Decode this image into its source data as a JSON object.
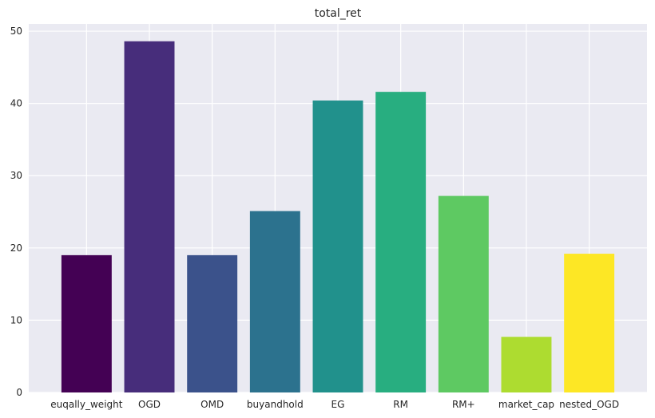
{
  "chart_data": {
    "type": "bar",
    "title": "total_ret",
    "xlabel": "",
    "ylabel": "",
    "categories": [
      "euqally_weight",
      "OGD",
      "OMD",
      "buyandhold",
      "EG",
      "RM",
      "RM+",
      "market_cap",
      "nested_OGD"
    ],
    "values": [
      19.0,
      48.6,
      19.0,
      25.1,
      40.4,
      41.6,
      27.2,
      7.7,
      19.2
    ],
    "colors": [
      "#440154",
      "#472d7b",
      "#3b528b",
      "#2c728e",
      "#21918c",
      "#28ae80",
      "#5ec962",
      "#addc30",
      "#fde725"
    ],
    "ylim": [
      0,
      51
    ],
    "yticks": [
      0,
      10,
      20,
      30,
      40,
      50
    ],
    "grid": true,
    "background": "#eaeaf2",
    "grid_color": "#ffffff"
  }
}
